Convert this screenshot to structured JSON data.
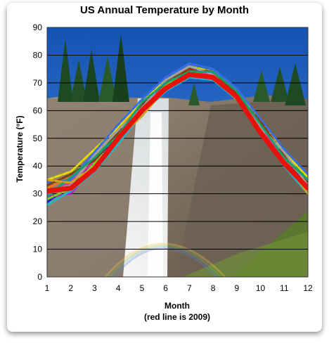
{
  "chart_data": {
    "type": "line",
    "title": "US Annual Temperature by Month",
    "xlabel": "Month",
    "ylabel": "Temperature (°F)",
    "note": "(red line is 2009)",
    "x": [
      1,
      2,
      3,
      4,
      5,
      6,
      7,
      8,
      9,
      10,
      11,
      12
    ],
    "xlim": [
      1,
      12
    ],
    "ylim": [
      0,
      90
    ],
    "yticks": [
      0,
      10,
      20,
      30,
      40,
      50,
      60,
      70,
      80,
      90
    ],
    "xticks": [
      1,
      2,
      3,
      4,
      5,
      6,
      7,
      8,
      9,
      10,
      11,
      12
    ],
    "grid": "horizontal",
    "background": "photo of waterfall with rainbow and pine trees",
    "highlight_color": "#e8120c",
    "series": [
      {
        "values": [
          31,
          32,
          39,
          50,
          60,
          68,
          73,
          72,
          65,
          52,
          41,
          32
        ],
        "color": "#e8120c",
        "highlight": true
      },
      {
        "values": [
          27,
          33,
          41,
          51,
          61,
          69,
          74,
          73,
          66,
          55,
          43,
          33
        ],
        "color": "#1a1ad8"
      },
      {
        "values": [
          33,
          37,
          43,
          53,
          62,
          70,
          75,
          73,
          66,
          55,
          44,
          35
        ],
        "color": "#22aa33"
      },
      {
        "values": [
          29,
          30,
          40,
          49,
          59,
          68,
          73,
          72,
          64,
          53,
          42,
          31
        ],
        "color": "#b020c8"
      },
      {
        "values": [
          35,
          38,
          46,
          54,
          63,
          71,
          76,
          74,
          67,
          56,
          45,
          36
        ],
        "color": "#e8d800"
      },
      {
        "values": [
          26,
          31,
          38,
          48,
          59,
          67,
          72,
          71,
          64,
          52,
          40,
          30
        ],
        "color": "#20b8c8"
      },
      {
        "values": [
          32,
          36,
          44,
          53,
          62,
          70,
          75,
          74,
          67,
          55,
          43,
          34
        ],
        "color": "#e87a10"
      },
      {
        "values": [
          30,
          34,
          42,
          52,
          61,
          69,
          74,
          73,
          65,
          54,
          42,
          32
        ],
        "color": "#e82ea0"
      },
      {
        "values": [
          34,
          35,
          45,
          55,
          64,
          72,
          77,
          75,
          68,
          57,
          46,
          37
        ],
        "color": "#3a6ee8"
      },
      {
        "values": [
          28,
          32,
          41,
          50,
          60,
          69,
          74,
          72,
          65,
          53,
          41,
          31
        ],
        "color": "#7ad020"
      },
      {
        "values": [
          33,
          37,
          42,
          52,
          62,
          70,
          75,
          74,
          66,
          56,
          44,
          34
        ],
        "color": "#8a3a10"
      },
      {
        "values": [
          31,
          33,
          44,
          53,
          61,
          71,
          76,
          73,
          65,
          54,
          45,
          33
        ],
        "color": "#a0a0a0"
      },
      {
        "values": [
          29,
          36,
          43,
          51,
          63,
          70,
          74,
          74,
          67,
          55,
          43,
          35
        ],
        "color": "#12a070"
      },
      {
        "values": [
          35,
          34,
          40,
          50,
          58,
          68,
          73,
          72,
          64,
          52,
          42,
          30
        ],
        "color": "#d0a020"
      }
    ]
  }
}
